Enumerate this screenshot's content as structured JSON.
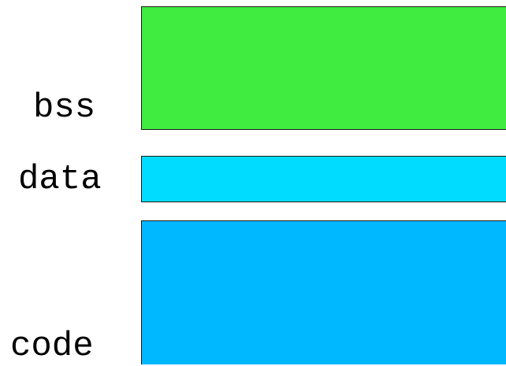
{
  "segments": [
    {
      "id": "bss",
      "label": "bss",
      "color": "#40ec40"
    },
    {
      "id": "data",
      "label": "data",
      "color": "#00dcff"
    },
    {
      "id": "code",
      "label": "code",
      "color": "#00b8ff"
    }
  ]
}
